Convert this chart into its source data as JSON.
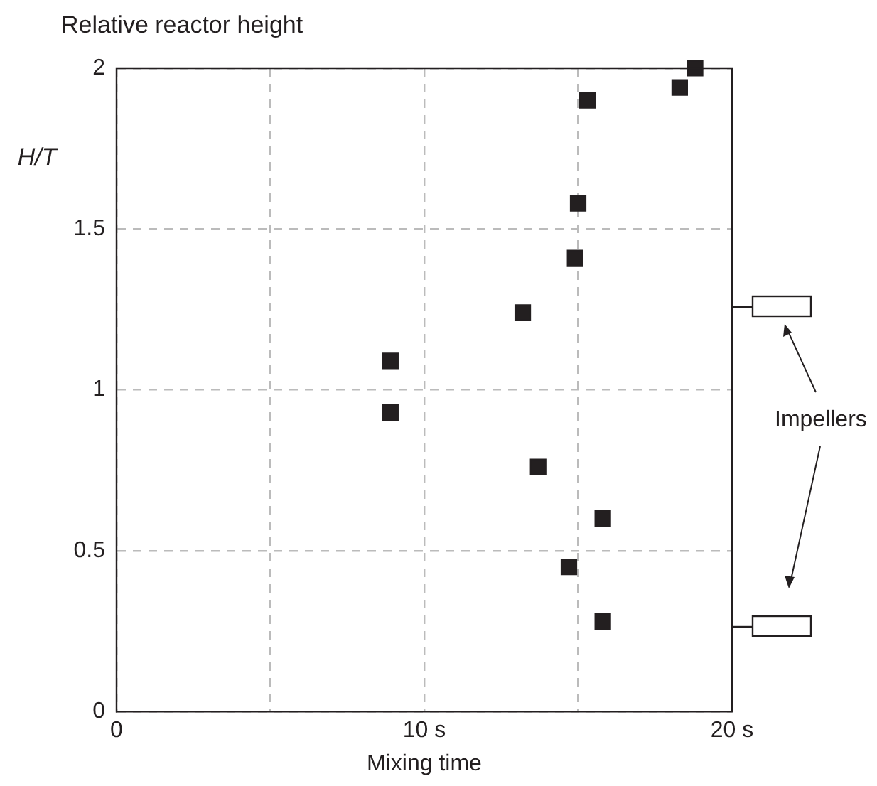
{
  "chart_data": {
    "type": "scatter",
    "title": "Relative reactor height",
    "xlabel": "Mixing time",
    "ylabel": "H/T",
    "annotations": [
      "Impellers"
    ],
    "series": [
      {
        "color": "#231f20",
        "x": [
          18.8,
          18.3,
          15.3,
          15.0,
          14.9,
          13.2,
          8.9,
          8.9,
          13.7,
          15.8,
          14.7,
          15.8
        ],
        "values": [
          2.0,
          1.94,
          1.9,
          1.58,
          1.41,
          1.24,
          1.09,
          0.93,
          0.76,
          0.6,
          0.45,
          0.28
        ]
      }
    ],
    "xlim": [
      0,
      20
    ],
    "xticks": [
      0,
      {
        "value": 5,
        "label": null
      },
      {
        "value": 10,
        "label": "10 s"
      },
      {
        "value": 15,
        "label": null
      },
      {
        "value": 20,
        "label": "20 s"
      }
    ],
    "ylim": [
      0,
      2
    ],
    "yticks": [
      0,
      0.5,
      1,
      1.5,
      2
    ],
    "grid": true,
    "legend": false,
    "marker": "square"
  }
}
